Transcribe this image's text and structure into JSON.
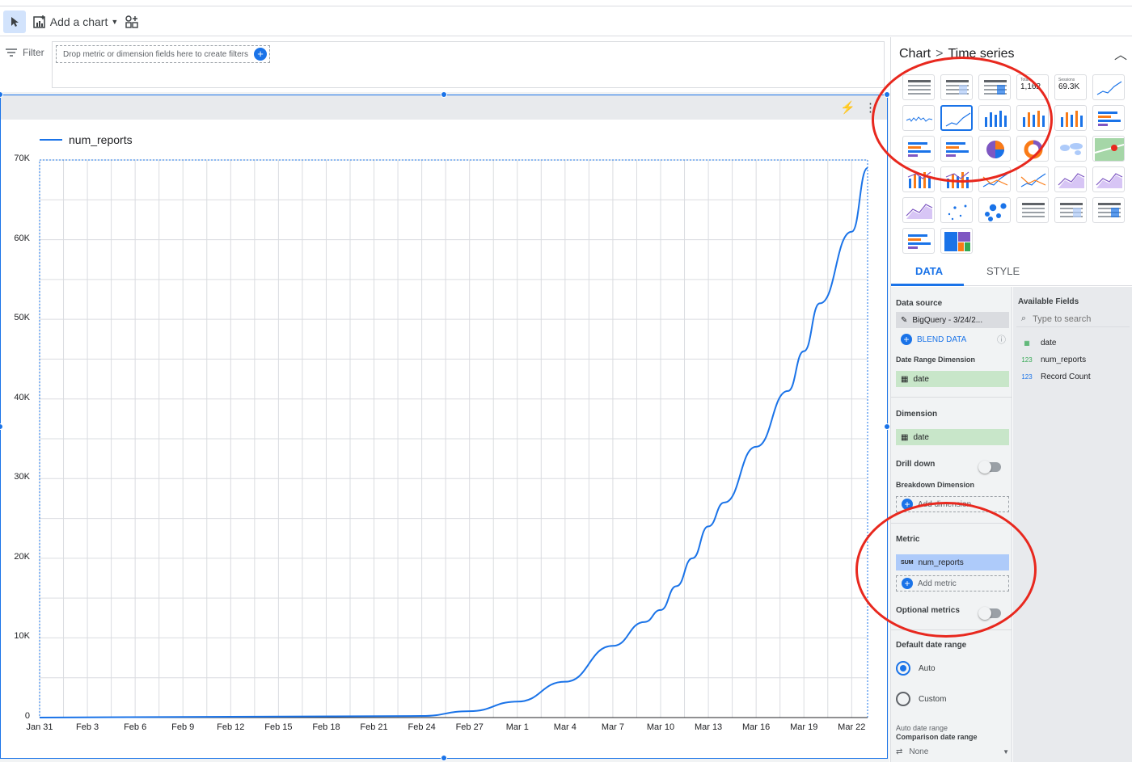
{
  "toolbar": {
    "add_chart_label": "Add a chart"
  },
  "filter": {
    "label": "Filter",
    "hint": "Drop metric or dimension fields here to create filters"
  },
  "chart_data": {
    "type": "line",
    "series": [
      {
        "name": "num_reports",
        "x": [
          "Jan 31",
          "Feb 24",
          "Feb 27",
          "Mar 1",
          "Mar 4",
          "Mar 7",
          "Mar 9",
          "Mar 10",
          "Mar 11",
          "Mar 12",
          "Mar 13",
          "Mar 14",
          "Mar 16",
          "Mar 18",
          "Mar 19",
          "Mar 20",
          "Mar 22",
          "Mar 23"
        ],
        "values": [
          0,
          200,
          800,
          2000,
          4500,
          9000,
          12000,
          13500,
          16500,
          20000,
          24000,
          27000,
          34000,
          41000,
          46000,
          52000,
          61000,
          69000
        ]
      }
    ],
    "x_ticks": [
      "Jan 31",
      "Feb 3",
      "Feb 6",
      "Feb 9",
      "Feb 12",
      "Feb 15",
      "Feb 18",
      "Feb 21",
      "Feb 24",
      "Feb 27",
      "Mar 1",
      "Mar 4",
      "Mar 7",
      "Mar 10",
      "Mar 13",
      "Mar 16",
      "Mar 19",
      "Mar 22"
    ],
    "y_ticks": [
      "0",
      "10K",
      "20K",
      "30K",
      "40K",
      "50K",
      "60K",
      "70K"
    ],
    "ylim": [
      0,
      70000
    ],
    "grid": true,
    "legend": "top-left",
    "colors": {
      "line": "#1a73e8"
    }
  },
  "panel": {
    "crumb_root": "Chart",
    "crumb_sep": ">",
    "crumb_leaf": "Time series",
    "tab_data": "DATA",
    "tab_style": "STYLE",
    "scorecard_a_label": "Total",
    "scorecard_a_value": "1,162",
    "scorecard_b_label": "Sessions",
    "scorecard_b_value": "69.3K",
    "data_source_label": "Data source",
    "data_source_value": "BigQuery - 3/24/2...",
    "blend_label": "BLEND DATA",
    "date_range_label": "Date Range Dimension",
    "date_range_value": "date",
    "dimension_label": "Dimension",
    "dimension_value": "date",
    "drill_label": "Drill down",
    "breakdown_label": "Breakdown Dimension",
    "breakdown_add": "Add dimension",
    "metric_label": "Metric",
    "metric_agg": "SUM",
    "metric_value": "num_reports",
    "add_metric": "Add metric",
    "optional_label": "Optional metrics",
    "default_range_label": "Default date range",
    "auto_label": "Auto",
    "custom_label": "Custom",
    "auto_date_range": "Auto date range",
    "comparison_label": "Comparison date range",
    "comparison_value": "None",
    "available_fields": "Available Fields",
    "search_placeholder": "Type to search",
    "fields": [
      {
        "type": "date",
        "name": "date",
        "color": "#34a853"
      },
      {
        "type": "123",
        "name": "num_reports",
        "color": "#34a853"
      },
      {
        "type": "123",
        "name": "Record Count",
        "color": "#1a73e8"
      }
    ]
  }
}
